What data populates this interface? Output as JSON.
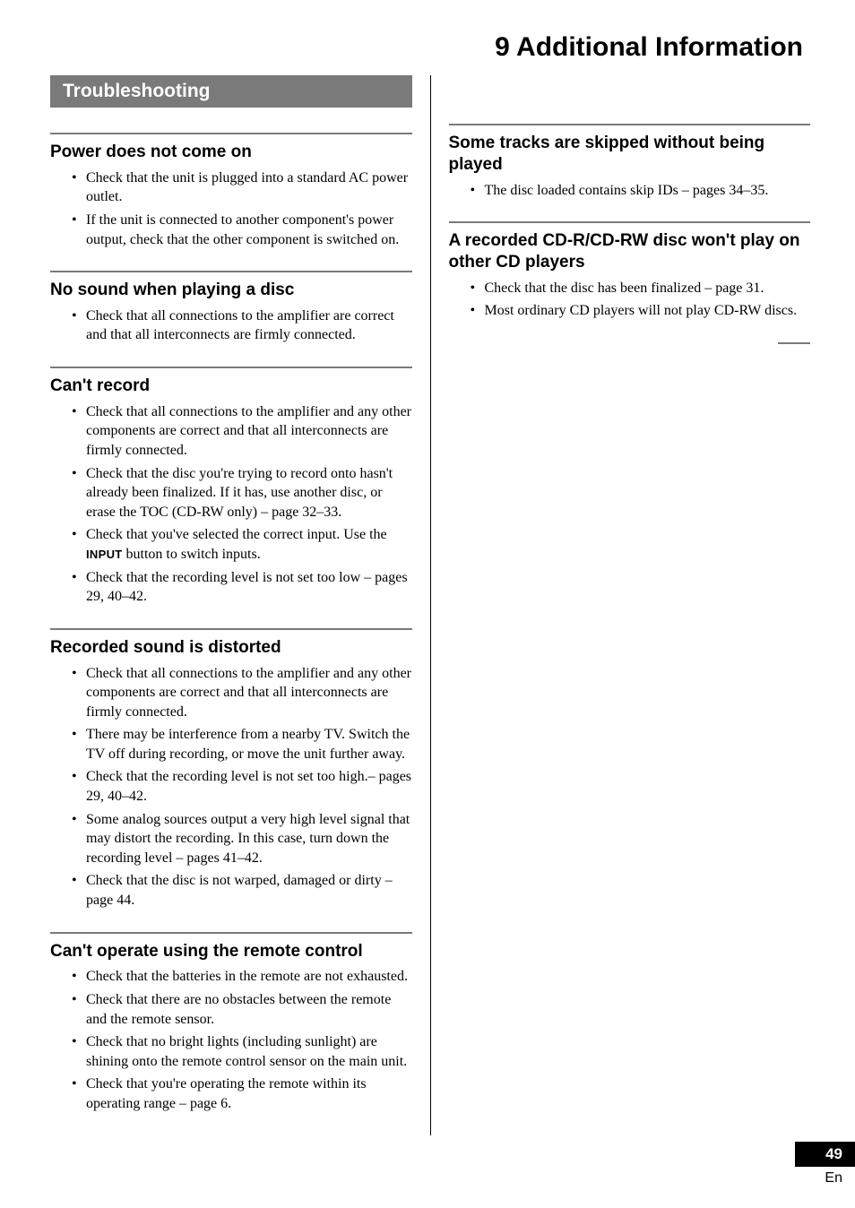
{
  "chapter_title": "9 Additional Information",
  "section_banner": "Troubleshooting",
  "page_number": "49",
  "language": "En",
  "colors": {
    "banner_bg": "#7a7a7a",
    "banner_text": "#ffffff",
    "rule": "#7a7a7a",
    "text": "#000000",
    "pagebox_bg": "#000000",
    "pagebox_text": "#ffffff",
    "background": "#ffffff"
  },
  "typography": {
    "chapter_title_size": 30,
    "banner_size": 21,
    "subhead_size": 19,
    "body_size": 16,
    "subhead_family": "Helvetica",
    "body_family": "Georgia"
  },
  "left": {
    "s1": {
      "head": "Power does not come on",
      "items": [
        "Check that the unit is plugged into a standard AC power outlet.",
        "If the unit is connected to another component's power output, check that the other component is switched on."
      ]
    },
    "s2": {
      "head": "No sound when playing a disc",
      "items": [
        "Check that all connections to the amplifier are correct and that all interconnects are firmly connected."
      ]
    },
    "s3": {
      "head": "Can't record",
      "items": [
        "Check that all connections to the amplifier and any other components are correct and that all interconnects are firmly connected.",
        "Check that the disc you're trying to record onto hasn't already been finalized. If it has, use another disc, or erase the TOC (CD-RW only) – page 32–33.",
        "Check that you've selected the correct input. Use the ",
        "Check that the recording level is not set too low – pages 29, 40–42."
      ],
      "input_keyword": "INPUT",
      "input_tail": " button to switch inputs."
    },
    "s4": {
      "head": "Recorded sound is distorted",
      "items": [
        "Check that all connections to the amplifier and any other components are correct and that all interconnects are firmly connected.",
        "There may be interference from a nearby TV. Switch the TV off during recording, or move the unit further away.",
        "Check that the recording level is not set too high.– pages 29, 40–42.",
        "Some analog sources output a very high level signal that may distort the recording. In this case, turn down the recording level – pages 41–42.",
        "Check that the disc is not warped, damaged or dirty – page 44."
      ]
    },
    "s5": {
      "head": "Can't operate using the remote control",
      "items": [
        "Check that the batteries in the remote are not exhausted.",
        "Check that there are no obstacles between the remote and the remote sensor.",
        "Check that no bright lights (including sunlight) are shining onto the remote control sensor on the main unit.",
        "Check that you're operating the remote within its operating range – page 6."
      ]
    }
  },
  "right": {
    "s1": {
      "head": "Some tracks are skipped without being played",
      "items": [
        "The disc loaded contains skip IDs – pages 34–35."
      ]
    },
    "s2": {
      "head": "A recorded CD-R/CD-RW disc won't play on other CD players",
      "items": [
        "Check that the disc has been finalized – page 31.",
        "Most ordinary CD players will not play CD-RW discs."
      ]
    }
  }
}
